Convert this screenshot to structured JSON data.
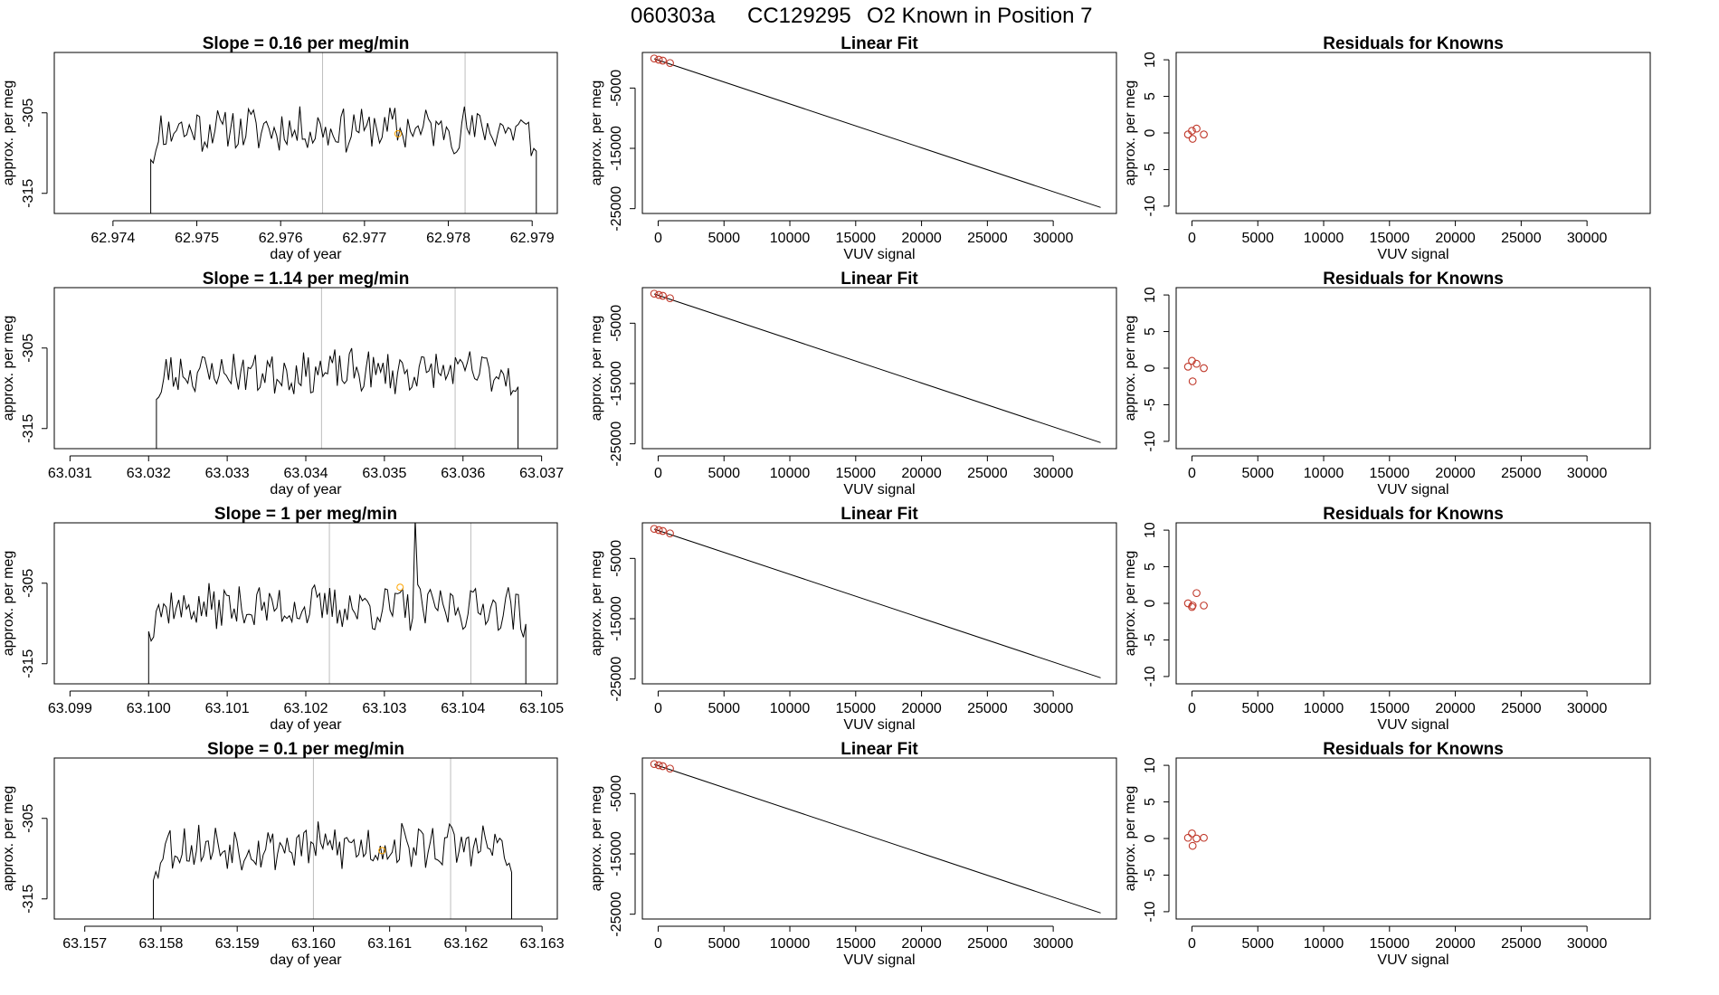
{
  "page_title_parts": [
    "060303a",
    "CC129295",
    "O2 Known in Position  7"
  ],
  "colors": {
    "line": "#000000",
    "vline": "#bebebe",
    "marker": "#ffa500",
    "circle": "#c0392b"
  },
  "chart_data": [
    {
      "row": 0,
      "type": "line",
      "title": "Slope =  0.16  per meg/min",
      "xlabel": "day of year",
      "ylabel": "approx. per meg",
      "xlim": [
        62.9733,
        62.9793
      ],
      "ylim": [
        -317.5,
        -297.5
      ],
      "xticks": [
        62.974,
        62.975,
        62.976,
        62.977,
        62.978,
        62.979
      ],
      "xtick_labels": [
        "62.974",
        "62.975",
        "62.976",
        "62.977",
        "62.978",
        "62.979"
      ],
      "yticks": [
        -305,
        -315
      ],
      "ytick_labels": [
        "-305",
        "-315"
      ],
      "start": 62.97445,
      "end": 62.97905,
      "level": -307.0,
      "amp": 2.6,
      "vlines": [
        62.9765,
        62.9782
      ],
      "marker": {
        "x": 62.9774,
        "y": -307.6
      },
      "seed": 11
    },
    {
      "row": 0,
      "type": "scatter+line",
      "title": "Linear Fit",
      "xlabel": "VUV signal",
      "ylabel": "approx. per meg",
      "xlim": [
        -1200,
        34800
      ],
      "ylim": [
        -25800,
        900
      ],
      "xticks": [
        0,
        5000,
        10000,
        15000,
        20000,
        25000,
        30000
      ],
      "xtick_labels": [
        "0",
        "5000",
        "10000",
        "15000",
        "20000",
        "25000",
        "30000"
      ],
      "yticks": [
        -5000,
        -15000,
        -25000
      ],
      "ytick_labels": [
        "-5000",
        "-15000",
        "-25000"
      ],
      "fit_line": {
        "x": [
          -300,
          33600
        ],
        "y": [
          -150,
          -24800
        ]
      },
      "points": [
        {
          "x": -300,
          "y": -100
        },
        {
          "x": 50,
          "y": -300
        },
        {
          "x": 350,
          "y": -450
        },
        {
          "x": 900,
          "y": -850
        }
      ]
    },
    {
      "row": 0,
      "type": "scatter",
      "title": "Residuals for Knowns",
      "xlabel": "VUV signal",
      "ylabel": "approx. per meg",
      "xlim": [
        -1200,
        34800
      ],
      "ylim": [
        -11,
        11
      ],
      "xticks": [
        0,
        5000,
        10000,
        15000,
        20000,
        25000,
        30000
      ],
      "xtick_labels": [
        "0",
        "5000",
        "10000",
        "15000",
        "20000",
        "25000",
        "30000"
      ],
      "yticks": [
        10,
        5,
        0,
        -5,
        -10
      ],
      "ytick_labels": [
        "10",
        "5",
        "0",
        "-5",
        "-10"
      ],
      "points": [
        {
          "x": -300,
          "y": -0.2
        },
        {
          "x": 0,
          "y": 0.3
        },
        {
          "x": 50,
          "y": -0.8
        },
        {
          "x": 350,
          "y": 0.6
        },
        {
          "x": 900,
          "y": -0.2
        }
      ]
    },
    {
      "row": 1,
      "type": "line",
      "title": "Slope =  1.14  per meg/min",
      "xlabel": "day of year",
      "ylabel": "approx. per meg",
      "xlim": [
        63.0308,
        63.0372
      ],
      "ylim": [
        -317.5,
        -297.5
      ],
      "xticks": [
        63.031,
        63.032,
        63.033,
        63.034,
        63.035,
        63.036,
        63.037
      ],
      "xtick_labels": [
        "63.031",
        "63.032",
        "63.033",
        "63.034",
        "63.035",
        "63.036",
        "63.037"
      ],
      "yticks": [
        -305,
        -315
      ],
      "ytick_labels": [
        "-305",
        "-315"
      ],
      "start": 63.0321,
      "end": 63.0367,
      "level": -308.0,
      "amp": 2.4,
      "vlines": [
        63.0342,
        63.0359
      ],
      "marker": null,
      "seed": 23
    },
    {
      "row": 1,
      "type": "scatter+line",
      "title": "Linear Fit",
      "xlabel": "VUV signal",
      "ylabel": "approx. per meg",
      "xlim": [
        -1200,
        34800
      ],
      "ylim": [
        -25800,
        900
      ],
      "xticks": [
        0,
        5000,
        10000,
        15000,
        20000,
        25000,
        30000
      ],
      "xtick_labels": [
        "0",
        "5000",
        "10000",
        "15000",
        "20000",
        "25000",
        "30000"
      ],
      "yticks": [
        -5000,
        -15000,
        -25000
      ],
      "ytick_labels": [
        "-5000",
        "-15000",
        "-25000"
      ],
      "fit_line": {
        "x": [
          -300,
          33600
        ],
        "y": [
          -150,
          -24800
        ]
      },
      "points": [
        {
          "x": -300,
          "y": -100
        },
        {
          "x": 50,
          "y": -300
        },
        {
          "x": 350,
          "y": -450
        },
        {
          "x": 900,
          "y": -850
        }
      ]
    },
    {
      "row": 1,
      "type": "scatter",
      "title": "Residuals for Knowns",
      "xlabel": "VUV signal",
      "ylabel": "approx. per meg",
      "xlim": [
        -1200,
        34800
      ],
      "ylim": [
        -11,
        11
      ],
      "xticks": [
        0,
        5000,
        10000,
        15000,
        20000,
        25000,
        30000
      ],
      "xtick_labels": [
        "0",
        "5000",
        "10000",
        "15000",
        "20000",
        "25000",
        "30000"
      ],
      "yticks": [
        10,
        5,
        0,
        -5,
        -10
      ],
      "ytick_labels": [
        "10",
        "5",
        "0",
        "-5",
        "-10"
      ],
      "points": [
        {
          "x": -300,
          "y": 0.2
        },
        {
          "x": 0,
          "y": 1.0
        },
        {
          "x": 50,
          "y": -1.8
        },
        {
          "x": 350,
          "y": 0.6
        },
        {
          "x": 900,
          "y": 0.0
        }
      ]
    },
    {
      "row": 2,
      "type": "line",
      "title": "Slope =  1  per meg/min",
      "xlabel": "day of year",
      "ylabel": "approx. per meg",
      "xlim": [
        63.0988,
        63.1052
      ],
      "ylim": [
        -317.5,
        -297.5
      ],
      "xticks": [
        63.099,
        63.1,
        63.101,
        63.102,
        63.103,
        63.104,
        63.105
      ],
      "xtick_labels": [
        "63.099",
        "63.100",
        "63.101",
        "63.102",
        "63.103",
        "63.104",
        "63.105"
      ],
      "yticks": [
        -305,
        -315
      ],
      "ytick_labels": [
        "-305",
        "-315"
      ],
      "start": 63.1,
      "end": 63.1048,
      "level": -308.0,
      "amp": 2.5,
      "vlines": [
        63.1023,
        63.1041
      ],
      "marker": {
        "x": 63.1032,
        "y": -305.5
      },
      "spike": {
        "x": 63.1034,
        "y": -297.0
      },
      "seed": 37
    },
    {
      "row": 2,
      "type": "scatter+line",
      "title": "Linear Fit",
      "xlabel": "VUV signal",
      "ylabel": "approx. per meg",
      "xlim": [
        -1200,
        34800
      ],
      "ylim": [
        -25800,
        900
      ],
      "xticks": [
        0,
        5000,
        10000,
        15000,
        20000,
        25000,
        30000
      ],
      "xtick_labels": [
        "0",
        "5000",
        "10000",
        "15000",
        "20000",
        "25000",
        "30000"
      ],
      "yticks": [
        -5000,
        -15000,
        -25000
      ],
      "ytick_labels": [
        "-5000",
        "-15000",
        "-25000"
      ],
      "fit_line": {
        "x": [
          -300,
          33600
        ],
        "y": [
          -150,
          -24800
        ]
      },
      "points": [
        {
          "x": -300,
          "y": -100
        },
        {
          "x": 50,
          "y": -300
        },
        {
          "x": 350,
          "y": -450
        },
        {
          "x": 900,
          "y": -850
        }
      ]
    },
    {
      "row": 2,
      "type": "scatter",
      "title": "Residuals for Knowns",
      "xlabel": "VUV signal",
      "ylabel": "approx. per meg",
      "xlim": [
        -1200,
        34800
      ],
      "ylim": [
        -11,
        11
      ],
      "xticks": [
        0,
        5000,
        10000,
        15000,
        20000,
        25000,
        30000
      ],
      "xtick_labels": [
        "0",
        "5000",
        "10000",
        "15000",
        "20000",
        "25000",
        "30000"
      ],
      "yticks": [
        10,
        5,
        0,
        -5,
        -10
      ],
      "ytick_labels": [
        "10",
        "5",
        "0",
        "-5",
        "-10"
      ],
      "points": [
        {
          "x": -300,
          "y": 0.0
        },
        {
          "x": 0,
          "y": -0.5
        },
        {
          "x": 50,
          "y": -0.3
        },
        {
          "x": 350,
          "y": 1.4
        },
        {
          "x": 900,
          "y": -0.3
        }
      ]
    },
    {
      "row": 3,
      "type": "line",
      "title": "Slope =  0.1  per meg/min",
      "xlabel": "day of year",
      "ylabel": "approx. per meg",
      "xlim": [
        63.1566,
        63.1632
      ],
      "ylim": [
        -317.5,
        -297.5
      ],
      "xticks": [
        63.157,
        63.158,
        63.159,
        63.16,
        63.161,
        63.162,
        63.163
      ],
      "xtick_labels": [
        "63.157",
        "63.158",
        "63.159",
        "63.160",
        "63.161",
        "63.162",
        "63.163"
      ],
      "yticks": [
        -305,
        -315
      ],
      "ytick_labels": [
        "-305",
        "-315"
      ],
      "start": 63.1579,
      "end": 63.1626,
      "level": -308.5,
      "amp": 2.6,
      "vlines": [
        63.16,
        63.1618
      ],
      "marker": {
        "x": 63.1609,
        "y": -309.0
      },
      "seed": 53
    },
    {
      "row": 3,
      "type": "scatter+line",
      "title": "Linear Fit",
      "xlabel": "VUV signal",
      "ylabel": "approx. per meg",
      "xlim": [
        -1200,
        34800
      ],
      "ylim": [
        -25800,
        900
      ],
      "xticks": [
        0,
        5000,
        10000,
        15000,
        20000,
        25000,
        30000
      ],
      "xtick_labels": [
        "0",
        "5000",
        "10000",
        "15000",
        "20000",
        "25000",
        "30000"
      ],
      "yticks": [
        -5000,
        -15000,
        -25000
      ],
      "ytick_labels": [
        "-5000",
        "-15000",
        "-25000"
      ],
      "fit_line": {
        "x": [
          -300,
          33600
        ],
        "y": [
          -150,
          -24800
        ]
      },
      "points": [
        {
          "x": -300,
          "y": -100
        },
        {
          "x": 50,
          "y": -300
        },
        {
          "x": 350,
          "y": -450
        },
        {
          "x": 900,
          "y": -850
        }
      ]
    },
    {
      "row": 3,
      "type": "scatter",
      "title": "Residuals for Knowns",
      "xlabel": "VUV signal",
      "ylabel": "approx. per meg",
      "xlim": [
        -1200,
        34800
      ],
      "ylim": [
        -11,
        11
      ],
      "xticks": [
        0,
        5000,
        10000,
        15000,
        20000,
        25000,
        30000
      ],
      "xtick_labels": [
        "0",
        "5000",
        "10000",
        "15000",
        "20000",
        "25000",
        "30000"
      ],
      "yticks": [
        10,
        5,
        0,
        -5,
        -10
      ],
      "ytick_labels": [
        "10",
        "5",
        "0",
        "-5",
        "-10"
      ],
      "points": [
        {
          "x": -300,
          "y": 0.1
        },
        {
          "x": 0,
          "y": 0.7
        },
        {
          "x": 50,
          "y": -1.0
        },
        {
          "x": 350,
          "y": 0.0
        },
        {
          "x": 900,
          "y": 0.1
        }
      ]
    }
  ]
}
